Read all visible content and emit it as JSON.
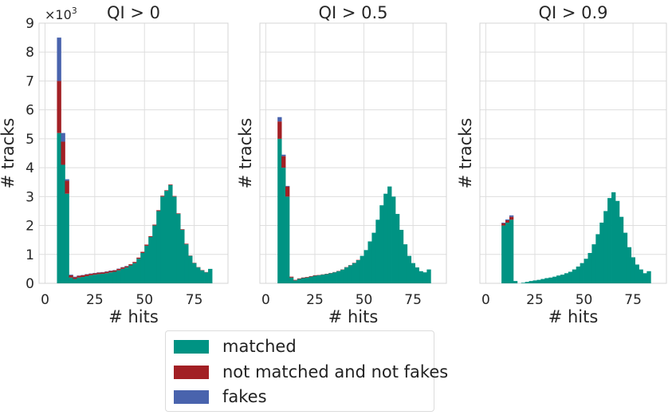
{
  "colors": {
    "matched": "#009383",
    "not_matched": "#a21f24",
    "fakes": "#4963ad",
    "grid": "#dedede",
    "axis_text": "#262626"
  },
  "exponent_label": "×10",
  "exponent_power": "3",
  "chart_data": [
    {
      "type": "bar",
      "stacked": true,
      "title": "QI > 0",
      "xlabel": "# hits",
      "ylabel": "# tracks",
      "xlim": [
        -3,
        92
      ],
      "ylim": [
        0,
        9
      ],
      "y_unit_multiplier": 1000,
      "xticks": [
        "0",
        "25",
        "50",
        "75"
      ],
      "yticks": [
        "0",
        "1",
        "2",
        "3",
        "4",
        "5",
        "6",
        "7",
        "8",
        "9"
      ],
      "grid": true,
      "bin_start": 6,
      "bin_width": 2,
      "series": [
        {
          "name": "matched",
          "values": [
            5.2,
            4.1,
            3.1,
            0.2,
            0.15,
            0.2,
            0.22,
            0.25,
            0.28,
            0.3,
            0.32,
            0.33,
            0.35,
            0.38,
            0.4,
            0.45,
            0.5,
            0.55,
            0.62,
            0.7,
            0.85,
            1.05,
            1.3,
            1.6,
            2.0,
            2.5,
            3.0,
            3.2,
            3.4,
            3.0,
            2.4,
            1.85,
            1.35,
            0.95,
            0.7,
            0.55,
            0.45,
            0.38,
            0.5
          ]
        },
        {
          "name": "not matched and not fakes",
          "values": [
            1.8,
            0.8,
            0.45,
            0.08,
            0.06,
            0.06,
            0.06,
            0.06,
            0.05,
            0.05,
            0.05,
            0.05,
            0.05,
            0.05,
            0.05,
            0.05,
            0.05,
            0.04,
            0.04,
            0.04,
            0.04,
            0.04,
            0.04,
            0.03,
            0.03,
            0.03,
            0.03,
            0.02,
            0.02,
            0.02,
            0.02,
            0.02,
            0.02,
            0.01,
            0.01,
            0.01,
            0.01,
            0.01,
            0.0
          ]
        },
        {
          "name": "fakes",
          "values": [
            1.5,
            0.3,
            0.05,
            0.02,
            0.02,
            0.01,
            0.01,
            0.01,
            0.01,
            0.01,
            0.01,
            0.01,
            0.01,
            0.01,
            0.01,
            0.01,
            0.01,
            0.01,
            0.0,
            0.0,
            0.0,
            0.0,
            0.0,
            0.0,
            0.0,
            0.0,
            0.0,
            0.0,
            0.0,
            0.0,
            0.0,
            0.0,
            0.0,
            0.0,
            0.0,
            0.0,
            0.0,
            0.0,
            0.0
          ]
        }
      ]
    },
    {
      "type": "bar",
      "stacked": true,
      "title": "QI > 0.5",
      "xlabel": "# hits",
      "ylabel": "# tracks",
      "xlim": [
        -3,
        92
      ],
      "ylim": [
        0,
        9
      ],
      "y_unit_multiplier": 1000,
      "xticks": [
        "0",
        "25",
        "50",
        "75"
      ],
      "yticks": [
        "0",
        "1",
        "2",
        "3",
        "4",
        "5",
        "6",
        "7",
        "8",
        "9"
      ],
      "grid": true,
      "bin_start": 6,
      "bin_width": 2,
      "series": [
        {
          "name": "matched",
          "values": [
            5.0,
            4.0,
            3.0,
            0.2,
            0.1,
            0.15,
            0.18,
            0.2,
            0.23,
            0.26,
            0.28,
            0.3,
            0.32,
            0.35,
            0.38,
            0.42,
            0.47,
            0.55,
            0.62,
            0.7,
            0.8,
            0.95,
            1.15,
            1.45,
            1.75,
            2.2,
            2.7,
            3.1,
            3.35,
            3.0,
            2.4,
            1.85,
            1.35,
            0.95,
            0.7,
            0.55,
            0.42,
            0.38,
            0.48
          ]
        },
        {
          "name": "not matched and not fakes",
          "values": [
            0.6,
            0.4,
            0.35,
            0.03,
            0.02,
            0.02,
            0.02,
            0.02,
            0.02,
            0.02,
            0.01,
            0.01,
            0.01,
            0.01,
            0.01,
            0.01,
            0.01,
            0.01,
            0.01,
            0.01,
            0.01,
            0.0,
            0.0,
            0.0,
            0.0,
            0.0,
            0.0,
            0.0,
            0.0,
            0.0,
            0.0,
            0.0,
            0.0,
            0.0,
            0.0,
            0.0,
            0.0,
            0.0,
            0.0
          ]
        },
        {
          "name": "fakes",
          "values": [
            0.15,
            0.05,
            0.02,
            0.0,
            0.0,
            0.0,
            0.0,
            0.0,
            0.0,
            0.0,
            0.0,
            0.0,
            0.0,
            0.0,
            0.0,
            0.0,
            0.0,
            0.0,
            0.0,
            0.0,
            0.0,
            0.0,
            0.0,
            0.0,
            0.0,
            0.0,
            0.0,
            0.0,
            0.0,
            0.0,
            0.0,
            0.0,
            0.0,
            0.0,
            0.0,
            0.0,
            0.0,
            0.0,
            0.0
          ]
        }
      ]
    },
    {
      "type": "bar",
      "stacked": true,
      "title": "QI > 0.9",
      "xlabel": "# hits",
      "ylabel": "# tracks",
      "xlim": [
        -3,
        92
      ],
      "ylim": [
        0,
        9
      ],
      "y_unit_multiplier": 1000,
      "xticks": [
        "0",
        "25",
        "50",
        "75"
      ],
      "yticks": [
        "0",
        "1",
        "2",
        "3",
        "4",
        "5",
        "6",
        "7",
        "8",
        "9"
      ],
      "grid": true,
      "bin_start": 6,
      "bin_width": 2,
      "series": [
        {
          "name": "matched",
          "values": [
            0.0,
            2.0,
            2.1,
            2.2,
            0.08,
            0.0,
            0.02,
            0.05,
            0.08,
            0.1,
            0.12,
            0.15,
            0.18,
            0.2,
            0.23,
            0.27,
            0.3,
            0.35,
            0.4,
            0.48,
            0.58,
            0.7,
            0.85,
            1.05,
            1.35,
            1.7,
            2.1,
            2.5,
            2.95,
            3.15,
            2.85,
            2.3,
            1.75,
            1.25,
            0.9,
            0.65,
            0.48,
            0.35,
            0.42
          ]
        },
        {
          "name": "not matched and not fakes",
          "values": [
            0.0,
            0.08,
            0.08,
            0.1,
            0.0,
            0.0,
            0.0,
            0.0,
            0.0,
            0.0,
            0.0,
            0.0,
            0.0,
            0.0,
            0.0,
            0.0,
            0.0,
            0.0,
            0.0,
            0.0,
            0.0,
            0.0,
            0.0,
            0.0,
            0.0,
            0.0,
            0.0,
            0.0,
            0.0,
            0.0,
            0.0,
            0.0,
            0.0,
            0.0,
            0.0,
            0.0,
            0.0,
            0.0,
            0.0
          ]
        },
        {
          "name": "fakes",
          "values": [
            0.0,
            0.02,
            0.03,
            0.05,
            0.0,
            0.0,
            0.0,
            0.0,
            0.0,
            0.0,
            0.0,
            0.0,
            0.0,
            0.0,
            0.0,
            0.0,
            0.0,
            0.0,
            0.0,
            0.0,
            0.0,
            0.0,
            0.0,
            0.0,
            0.0,
            0.0,
            0.0,
            0.0,
            0.0,
            0.0,
            0.0,
            0.0,
            0.0,
            0.0,
            0.0,
            0.0,
            0.0,
            0.0,
            0.0
          ]
        }
      ]
    }
  ],
  "legend": {
    "items": [
      {
        "label": "matched",
        "color": "#009383"
      },
      {
        "label": "not matched and not fakes",
        "color": "#a21f24"
      },
      {
        "label": "fakes",
        "color": "#4963ad"
      }
    ]
  }
}
